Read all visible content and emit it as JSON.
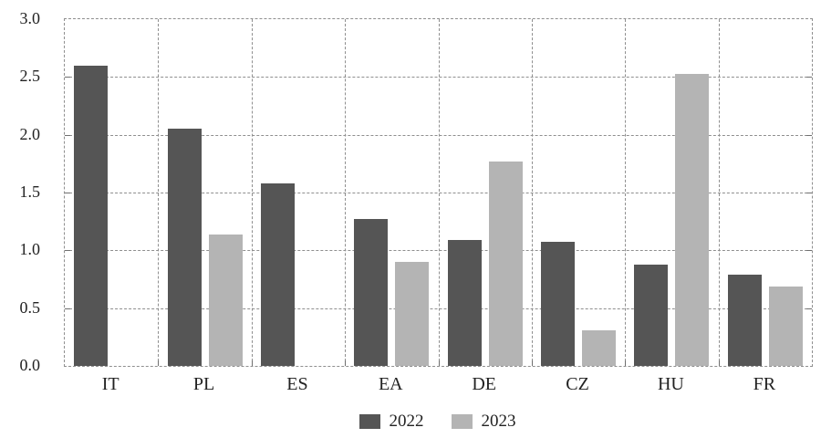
{
  "chart_data": {
    "type": "bar",
    "title": "",
    "categories": [
      "IT",
      "PL",
      "ES",
      "EA",
      "DE",
      "CZ",
      "HU",
      "FR"
    ],
    "series": [
      {
        "name": "2022",
        "color": "#555555",
        "values": [
          2.6,
          2.05,
          1.58,
          1.27,
          1.09,
          1.07,
          0.88,
          0.79
        ]
      },
      {
        "name": "2023",
        "color": "#b4b4b4",
        "values": [
          null,
          1.14,
          null,
          0.9,
          1.77,
          0.31,
          2.53,
          0.69
        ]
      }
    ],
    "xlabel": "",
    "ylabel": "",
    "ylim": [
      0,
      3.0
    ],
    "ytick_step": 0.5,
    "ytick_labels": [
      "0.0",
      "0.5",
      "1.0",
      "1.5",
      "2.0",
      "2.5",
      "3.0"
    ],
    "grid": "dashed horizontal and vertical, dashed outer frame",
    "legend_position": "bottom-center"
  },
  "colors": {
    "series_2022": "#555555",
    "series_2023": "#b4b4b4",
    "gridline": "#8f8f8f",
    "text": "#222222",
    "background": "#ffffff"
  }
}
